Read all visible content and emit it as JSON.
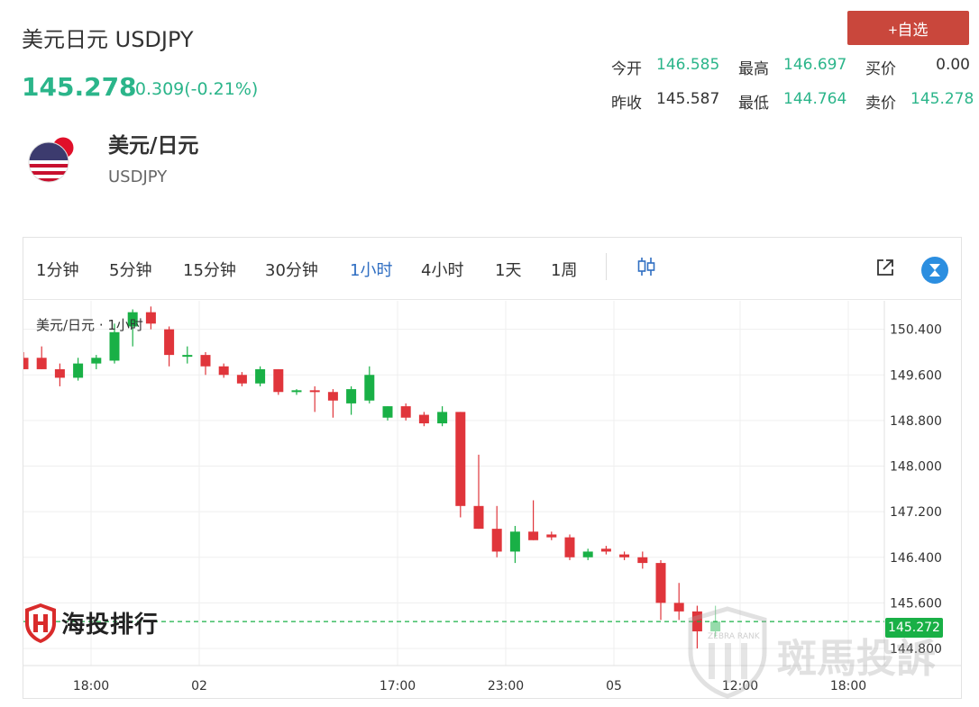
{
  "header": {
    "title": "美元日元 USDJPY",
    "price": "145.278",
    "change": "-0.309(-0.21%)",
    "add_button": "+自选"
  },
  "quote": {
    "row1": [
      {
        "label": "今开",
        "value": "146.585",
        "color": "green"
      },
      {
        "label": "最高",
        "value": "146.697",
        "color": "green"
      },
      {
        "label": "买价",
        "value": "0.00",
        "color": "dark"
      }
    ],
    "row2": [
      {
        "label": "昨收",
        "value": "145.587",
        "color": "dark"
      },
      {
        "label": "最低",
        "value": "144.764",
        "color": "green"
      },
      {
        "label": "卖价",
        "value": "145.278",
        "color": "green"
      }
    ]
  },
  "pair": {
    "name": "美元/日元",
    "code": "USDJPY",
    "flag_icon": "us-jp-flag-icon"
  },
  "toolbar": {
    "timeframes": [
      "1分钟",
      "5分钟",
      "15分钟",
      "30分钟",
      "1小时",
      "4小时",
      "1天",
      "1周"
    ],
    "active": "1小时",
    "icons": [
      "candlestick-icon",
      "external-link-icon",
      "tradingview-icon"
    ]
  },
  "chart_data": {
    "type": "candlestick",
    "title": "美元/日元 · 1小时",
    "ylim": [
      144.5,
      150.9
    ],
    "y_ticks": [
      "150.400",
      "149.600",
      "148.800",
      "148.000",
      "147.200",
      "146.400",
      "145.600",
      "144.800"
    ],
    "x_ticks": [
      "18:00",
      "02",
      "17:00",
      "23:00",
      "05",
      "12:00",
      "18:00"
    ],
    "current_price": "145.272",
    "colors": {
      "up": "#19b046",
      "down": "#e0353b",
      "last_line": "#19b046"
    },
    "candles": [
      {
        "o": 149.9,
        "h": 150.0,
        "l": 149.7,
        "c": 149.7
      },
      {
        "o": 149.9,
        "h": 150.1,
        "l": 149.7,
        "c": 149.7
      },
      {
        "o": 149.7,
        "h": 149.8,
        "l": 149.4,
        "c": 149.55
      },
      {
        "o": 149.55,
        "h": 149.9,
        "l": 149.5,
        "c": 149.8
      },
      {
        "o": 149.8,
        "h": 149.95,
        "l": 149.7,
        "c": 149.9
      },
      {
        "o": 149.85,
        "h": 150.5,
        "l": 149.8,
        "c": 150.35
      },
      {
        "o": 150.45,
        "h": 150.75,
        "l": 150.1,
        "c": 150.7
      },
      {
        "o": 150.7,
        "h": 150.8,
        "l": 150.4,
        "c": 150.5
      },
      {
        "o": 150.4,
        "h": 150.45,
        "l": 149.75,
        "c": 149.95
      },
      {
        "o": 149.95,
        "h": 150.1,
        "l": 149.8,
        "c": 149.95
      },
      {
        "o": 149.95,
        "h": 150.0,
        "l": 149.6,
        "c": 149.75
      },
      {
        "o": 149.75,
        "h": 149.8,
        "l": 149.55,
        "c": 149.6
      },
      {
        "o": 149.6,
        "h": 149.65,
        "l": 149.4,
        "c": 149.45
      },
      {
        "o": 149.45,
        "h": 149.75,
        "l": 149.4,
        "c": 149.7
      },
      {
        "o": 149.7,
        "h": 149.7,
        "l": 149.25,
        "c": 149.3
      },
      {
        "o": 149.3,
        "h": 149.35,
        "l": 149.25,
        "c": 149.33
      },
      {
        "o": 149.33,
        "h": 149.4,
        "l": 148.95,
        "c": 149.3
      },
      {
        "o": 149.3,
        "h": 149.35,
        "l": 148.85,
        "c": 149.15
      },
      {
        "o": 149.1,
        "h": 149.4,
        "l": 148.9,
        "c": 149.35
      },
      {
        "o": 149.15,
        "h": 149.75,
        "l": 149.1,
        "c": 149.6
      },
      {
        "o": 148.85,
        "h": 149.05,
        "l": 148.8,
        "c": 149.05
      },
      {
        "o": 149.05,
        "h": 149.1,
        "l": 148.8,
        "c": 148.85
      },
      {
        "o": 148.9,
        "h": 148.95,
        "l": 148.7,
        "c": 148.75
      },
      {
        "o": 148.75,
        "h": 149.05,
        "l": 148.7,
        "c": 148.95
      },
      {
        "o": 148.95,
        "h": 148.95,
        "l": 147.1,
        "c": 147.3
      },
      {
        "o": 147.3,
        "h": 148.2,
        "l": 146.9,
        "c": 146.9
      },
      {
        "o": 146.9,
        "h": 147.3,
        "l": 146.4,
        "c": 146.5
      },
      {
        "o": 146.5,
        "h": 146.95,
        "l": 146.3,
        "c": 146.85
      },
      {
        "o": 146.85,
        "h": 147.4,
        "l": 146.7,
        "c": 146.7
      },
      {
        "o": 146.8,
        "h": 146.85,
        "l": 146.7,
        "c": 146.75
      },
      {
        "o": 146.75,
        "h": 146.8,
        "l": 146.35,
        "c": 146.4
      },
      {
        "o": 146.4,
        "h": 146.55,
        "l": 146.35,
        "c": 146.5
      },
      {
        "o": 146.55,
        "h": 146.6,
        "l": 146.45,
        "c": 146.5
      },
      {
        "o": 146.45,
        "h": 146.5,
        "l": 146.35,
        "c": 146.4
      },
      {
        "o": 146.4,
        "h": 146.5,
        "l": 146.2,
        "c": 146.3
      },
      {
        "o": 146.3,
        "h": 146.35,
        "l": 145.3,
        "c": 145.6
      },
      {
        "o": 145.6,
        "h": 145.95,
        "l": 145.3,
        "c": 145.45
      },
      {
        "o": 145.45,
        "h": 145.55,
        "l": 144.8,
        "c": 145.1
      },
      {
        "o": 145.1,
        "h": 145.55,
        "l": 145.0,
        "c": 145.272
      }
    ]
  },
  "branding": {
    "logo_text": "海投排行",
    "watermark": "斑馬投訴",
    "watermark_sub": "ZEBRA RANK"
  }
}
